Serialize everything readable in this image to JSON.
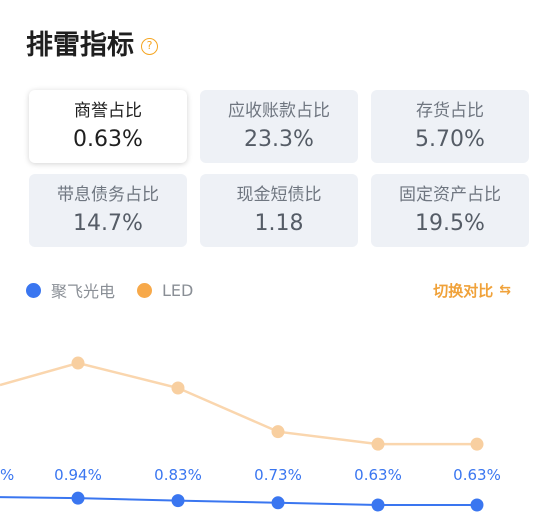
{
  "header": {
    "title": "排雷指标",
    "help_icon": "question-circle-icon"
  },
  "metrics": [
    {
      "label": "商誉占比",
      "value": "0.63%",
      "active": true
    },
    {
      "label": "应收账款占比",
      "value": "23.3%",
      "active": false
    },
    {
      "label": "存货占比",
      "value": "5.70%",
      "active": false
    },
    {
      "label": "带息债务占比",
      "value": "14.7%",
      "active": false
    },
    {
      "label": "现金短债比",
      "value": "1.18",
      "active": false
    },
    {
      "label": "固定资产占比",
      "value": "19.5%",
      "active": false
    }
  ],
  "legend": [
    {
      "name": "聚飞光电",
      "color": "#3a76f0"
    },
    {
      "name": "LED",
      "color": "#f7a94a"
    }
  ],
  "switch": {
    "label": "切换对比",
    "icon": "switch-icon"
  },
  "colors": {
    "primary": "#3a76f0",
    "compare_line": "#fad6ae",
    "compare_point": "#f8cfa0",
    "accent": "#f0a23a"
  },
  "chart_data": {
    "type": "line",
    "series": [
      {
        "name": "聚飞光电",
        "values": [
          1.0,
          0.94,
          0.83,
          0.73,
          0.63,
          0.63
        ],
        "labels": [
          "%",
          "0.94%",
          "0.83%",
          "0.73%",
          "0.63%",
          "0.63%"
        ]
      },
      {
        "name": "LED",
        "values": [
          null,
          6.2,
          5.0,
          2.9,
          2.3,
          2.3
        ]
      }
    ]
  }
}
